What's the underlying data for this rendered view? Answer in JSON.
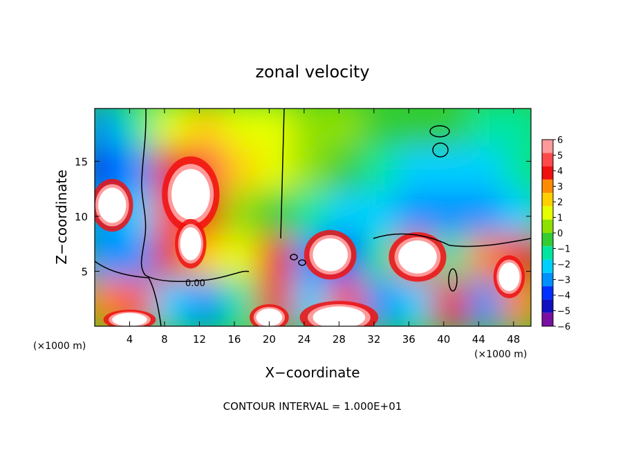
{
  "chart_data": {
    "type": "heatmap",
    "title": "zonal velocity",
    "xlabel": "X−coordinate",
    "ylabel": "Z−coordinate",
    "x_unit_label": "(×1000 m)",
    "z_unit_label": "(×1000 m)",
    "footer": "CONTOUR INTERVAL = 1.000E+01",
    "xlim": [
      0,
      50
    ],
    "ylim": [
      0,
      19.8
    ],
    "x_ticks": [
      4,
      8,
      12,
      16,
      20,
      24,
      28,
      32,
      36,
      40,
      44,
      48
    ],
    "x_tick_labels": [
      "4",
      "8",
      "12",
      "16",
      "20",
      "24",
      "28",
      "32",
      "36",
      "40",
      "44",
      "48"
    ],
    "y_ticks": [
      5,
      10,
      15
    ],
    "y_tick_labels": [
      "5",
      "10",
      "15"
    ],
    "contour_label": "0.00",
    "colorbar": {
      "levels": [
        6,
        5,
        4,
        3,
        2,
        1,
        0,
        -1,
        -2,
        -3,
        -4,
        -5,
        -6
      ],
      "level_labels": [
        "6",
        "5",
        "4",
        "3",
        "2",
        "1",
        "0",
        "−1",
        "−2",
        "−3",
        "−4",
        "−5",
        "−6"
      ],
      "colors": [
        "#ff9a9a",
        "#ff4a4a",
        "#f01010",
        "#ff8c00",
        "#ffd000",
        "#e6ff00",
        "#8ee000",
        "#33cc33",
        "#00e6a0",
        "#00d0ff",
        "#0090ff",
        "#0030ff",
        "#1010c0",
        "#7a10a0"
      ]
    },
    "field_cells": [
      {
        "x": 1,
        "z": 18,
        "v": -4
      },
      {
        "x": 5,
        "z": 18,
        "v": -2
      },
      {
        "x": 9,
        "z": 18,
        "v": 1
      },
      {
        "x": 13,
        "z": 18,
        "v": 2
      },
      {
        "x": 17,
        "z": 18,
        "v": 1
      },
      {
        "x": 21,
        "z": 18,
        "v": 1
      },
      {
        "x": 25,
        "z": 18,
        "v": 0
      },
      {
        "x": 29,
        "z": 18,
        "v": 0
      },
      {
        "x": 33,
        "z": 18,
        "v": -1
      },
      {
        "x": 37,
        "z": 18,
        "v": -1
      },
      {
        "x": 41,
        "z": 18,
        "v": -1
      },
      {
        "x": 45,
        "z": 18,
        "v": -2
      },
      {
        "x": 49,
        "z": 18,
        "v": -2
      },
      {
        "x": 1,
        "z": 14,
        "v": -5
      },
      {
        "x": 5,
        "z": 14,
        "v": -4
      },
      {
        "x": 9,
        "z": 14,
        "v": 4
      },
      {
        "x": 13,
        "z": 14,
        "v": 5
      },
      {
        "x": 17,
        "z": 14,
        "v": 2
      },
      {
        "x": 21,
        "z": 14,
        "v": 1
      },
      {
        "x": 25,
        "z": 14,
        "v": 0
      },
      {
        "x": 29,
        "z": 14,
        "v": -1
      },
      {
        "x": 33,
        "z": 14,
        "v": -2
      },
      {
        "x": 37,
        "z": 14,
        "v": -3
      },
      {
        "x": 41,
        "z": 14,
        "v": -3
      },
      {
        "x": 45,
        "z": 14,
        "v": -3
      },
      {
        "x": 49,
        "z": 14,
        "v": -2
      },
      {
        "x": 1,
        "z": 10,
        "v": -4
      },
      {
        "x": 5,
        "z": 10,
        "v": -3
      },
      {
        "x": 9,
        "z": 10,
        "v": 5
      },
      {
        "x": 13,
        "z": 10,
        "v": 4
      },
      {
        "x": 17,
        "z": 10,
        "v": 0
      },
      {
        "x": 21,
        "z": 10,
        "v": -1
      },
      {
        "x": 25,
        "z": 10,
        "v": -2
      },
      {
        "x": 29,
        "z": 10,
        "v": -3
      },
      {
        "x": 33,
        "z": 10,
        "v": -3
      },
      {
        "x": 37,
        "z": 10,
        "v": -4
      },
      {
        "x": 41,
        "z": 10,
        "v": -4
      },
      {
        "x": 45,
        "z": 10,
        "v": -4
      },
      {
        "x": 49,
        "z": 10,
        "v": -3
      },
      {
        "x": 1,
        "z": 6,
        "v": -4
      },
      {
        "x": 5,
        "z": 6,
        "v": -4
      },
      {
        "x": 9,
        "z": 6,
        "v": 4
      },
      {
        "x": 13,
        "z": 6,
        "v": 2
      },
      {
        "x": 17,
        "z": 6,
        "v": 1
      },
      {
        "x": 21,
        "z": 6,
        "v": 4
      },
      {
        "x": 25,
        "z": 6,
        "v": -4
      },
      {
        "x": 29,
        "z": 6,
        "v": -5
      },
      {
        "x": 33,
        "z": 6,
        "v": -2
      },
      {
        "x": 37,
        "z": 6,
        "v": 5
      },
      {
        "x": 41,
        "z": 6,
        "v": -2
      },
      {
        "x": 45,
        "z": 6,
        "v": 3
      },
      {
        "x": 49,
        "z": 6,
        "v": 4
      },
      {
        "x": 1,
        "z": 2,
        "v": 3
      },
      {
        "x": 5,
        "z": 2,
        "v": 5
      },
      {
        "x": 9,
        "z": 2,
        "v": -3
      },
      {
        "x": 13,
        "z": 2,
        "v": -4
      },
      {
        "x": 17,
        "z": 2,
        "v": -2
      },
      {
        "x": 21,
        "z": 2,
        "v": 4
      },
      {
        "x": 25,
        "z": 2,
        "v": -3
      },
      {
        "x": 29,
        "z": 2,
        "v": 5
      },
      {
        "x": 33,
        "z": 2,
        "v": -4
      },
      {
        "x": 37,
        "z": 2,
        "v": -3
      },
      {
        "x": 41,
        "z": 2,
        "v": 4
      },
      {
        "x": 45,
        "z": 2,
        "v": -4
      },
      {
        "x": 49,
        "z": 2,
        "v": 3
      }
    ],
    "saturated_regions": [
      {
        "x": 2,
        "z": 11,
        "rx": 1.6,
        "rz": 1.6
      },
      {
        "x": 11,
        "z": 12,
        "rx": 2.2,
        "rz": 2.3
      },
      {
        "x": 11,
        "z": 7.5,
        "rx": 1.2,
        "rz": 1.5
      },
      {
        "x": 27,
        "z": 6.5,
        "rx": 2.0,
        "rz": 1.5
      },
      {
        "x": 37,
        "z": 6.3,
        "rx": 2.2,
        "rz": 1.5
      },
      {
        "x": 47.5,
        "z": 4.5,
        "rx": 1.2,
        "rz": 1.3
      },
      {
        "x": 28,
        "z": 0.8,
        "rx": 3.0,
        "rz": 1.0
      },
      {
        "x": 4,
        "z": 0.6,
        "rx": 2.0,
        "rz": 0.6
      },
      {
        "x": 20,
        "z": 0.8,
        "rx": 1.5,
        "rz": 0.8
      }
    ]
  }
}
